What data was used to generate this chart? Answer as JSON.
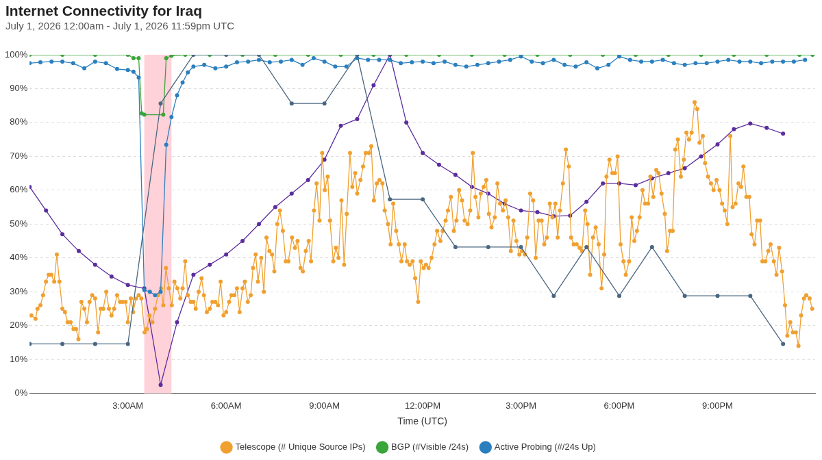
{
  "chart_data": {
    "type": "line",
    "title": "Internet Connectivity for Iraq",
    "subtitle": "July 1, 2026 12:00am - July 1, 2026 11:59pm UTC",
    "xlabel": "Time (UTC)",
    "xlim": [
      0,
      23.98
    ],
    "xticks": [
      {
        "value": 3,
        "label": "3:00AM"
      },
      {
        "value": 6,
        "label": "6:00AM"
      },
      {
        "value": 9,
        "label": "9:00AM"
      },
      {
        "value": 12,
        "label": "12:00PM"
      },
      {
        "value": 15,
        "label": "3:00PM"
      },
      {
        "value": 18,
        "label": "6:00PM"
      },
      {
        "value": 21,
        "label": "9:00PM"
      }
    ],
    "ylim": [
      0,
      100
    ],
    "yticks": [
      {
        "value": 0,
        "label": "0%"
      },
      {
        "value": 10,
        "label": "10%"
      },
      {
        "value": 20,
        "label": "20%"
      },
      {
        "value": 30,
        "label": "30%"
      },
      {
        "value": 40,
        "label": "40%"
      },
      {
        "value": 50,
        "label": "50%"
      },
      {
        "value": 60,
        "label": "60%"
      },
      {
        "value": 70,
        "label": "70%"
      },
      {
        "value": 80,
        "label": "80%"
      },
      {
        "value": 90,
        "label": "90%"
      },
      {
        "value": 100,
        "label": "100%"
      }
    ],
    "grid": "y",
    "legend": "bottom",
    "marker": "circle",
    "line_style": "solid",
    "bands": [
      {
        "axis": "x",
        "from": 3.5,
        "to": 4.33,
        "color": "#ffd1d9"
      }
    ],
    "series": [
      {
        "color": "#5b2d9e",
        "x": [
          0,
          0.5,
          1,
          1.5,
          2,
          2.5,
          3,
          3.5,
          4,
          4.5,
          5,
          5.5,
          6,
          6.5,
          7,
          7.5,
          8,
          8.5,
          9,
          9.5,
          10,
          10.5,
          11,
          11.5,
          12,
          12.5,
          13,
          13.5,
          14,
          14.5,
          15,
          15.5,
          16,
          16.5,
          17,
          17.5,
          18,
          18.5,
          19,
          19.5,
          20,
          20.5,
          21,
          21.5,
          22,
          22.5,
          23
        ],
        "values": [
          61,
          54,
          47,
          42,
          38,
          34.5,
          32,
          31,
          2.5,
          21,
          35,
          38,
          41,
          45,
          50,
          55,
          59,
          63,
          69,
          79,
          81,
          91,
          100,
          80,
          71,
          67.5,
          64.5,
          61,
          59,
          56,
          54,
          53.5,
          52.3,
          52.5,
          56.6,
          62,
          62,
          61.5,
          63.5,
          65,
          66.5,
          70,
          73.5,
          78,
          79.7,
          78.4,
          76.7
        ]
      },
      {
        "name": "Telescope (# Unique Source IPs)",
        "color": "#f0a030",
        "x": [
          0.05,
          0.18,
          0.24,
          0.33,
          0.41,
          0.5,
          0.58,
          0.66,
          0.75,
          0.83,
          0.91,
          1.0,
          1.08,
          1.16,
          1.25,
          1.34,
          1.42,
          1.49,
          1.58,
          1.67,
          1.75,
          1.83,
          1.91,
          2.0,
          2.09,
          2.17,
          2.25,
          2.34,
          2.42,
          2.5,
          2.58,
          2.67,
          2.76,
          2.84,
          2.93,
          3.0,
          3.09,
          3.16,
          3.25,
          3.33,
          3.41,
          3.51,
          3.58,
          3.66,
          3.75,
          3.83,
          3.92,
          4.01,
          4.08,
          4.16,
          4.25,
          4.34,
          4.42,
          4.51,
          4.6,
          4.67,
          4.75,
          4.83,
          4.92,
          5.0,
          5.07,
          5.16,
          5.25,
          5.32,
          5.41,
          5.5,
          5.58,
          5.67,
          5.75,
          5.83,
          5.92,
          6.0,
          6.09,
          6.16,
          6.25,
          6.33,
          6.41,
          6.5,
          6.57,
          6.66,
          6.75,
          6.82,
          6.9,
          6.97,
          7.07,
          7.15,
          7.23,
          7.32,
          7.4,
          7.47,
          7.56,
          7.64,
          7.73,
          7.82,
          7.9,
          8.01,
          8.1,
          8.18,
          8.27,
          8.34,
          8.43,
          8.52,
          8.59,
          8.68,
          8.76,
          8.85,
          8.93,
          9.01,
          9.1,
          9.17,
          9.27,
          9.35,
          9.43,
          9.52,
          9.6,
          9.68,
          9.78,
          9.85,
          9.94,
          10.0,
          10.1,
          10.18,
          10.26,
          10.36,
          10.43,
          10.51,
          10.6,
          10.68,
          10.77,
          10.84,
          10.94,
          11.02,
          11.1,
          11.19,
          11.27,
          11.35,
          11.45,
          11.52,
          11.6,
          11.69,
          11.77,
          11.86,
          11.94,
          12.03,
          12.1,
          12.18,
          12.27,
          12.36,
          12.44,
          12.54,
          12.61,
          12.7,
          12.77,
          12.86,
          12.95,
          13.03,
          13.11,
          13.2,
          13.28,
          13.37,
          13.45,
          13.53,
          13.61,
          13.7,
          13.77,
          13.86,
          13.94,
          14.02,
          14.1,
          14.2,
          14.28,
          14.36,
          14.45,
          14.53,
          14.61,
          14.69,
          14.77,
          14.86,
          14.95,
          15.03,
          15.12,
          15.19,
          15.28,
          15.37,
          15.45,
          15.54,
          15.63,
          15.71,
          15.79,
          15.88,
          15.96,
          16.05,
          16.12,
          16.19,
          16.28,
          16.37,
          16.46,
          16.53,
          16.61,
          16.7,
          16.79,
          16.86,
          16.96,
          17.03,
          17.11,
          17.2,
          17.28,
          17.37,
          17.46,
          17.54,
          17.61,
          17.7,
          17.79,
          17.87,
          17.95,
          18.04,
          18.13,
          18.2,
          18.3,
          18.38,
          18.46,
          18.54,
          18.62,
          18.71,
          18.79,
          18.88,
          18.95,
          19.04,
          19.13,
          19.2,
          19.29,
          19.39,
          19.46,
          19.55,
          19.63,
          19.71,
          19.79,
          19.88,
          19.97,
          20.05,
          20.13,
          20.21,
          20.3,
          20.38,
          20.45,
          20.55,
          20.62,
          20.71,
          20.8,
          20.88,
          20.97,
          21.06,
          21.14,
          21.22,
          21.3,
          21.39,
          21.46,
          21.55,
          21.64,
          21.72,
          21.79,
          21.88,
          21.97,
          22.04,
          22.13,
          22.21,
          22.3,
          22.37,
          22.46,
          22.55,
          22.62,
          22.72,
          22.8,
          22.88,
          22.97,
          23.06,
          23.13,
          23.22,
          23.3,
          23.39,
          23.47,
          23.55,
          23.64,
          23.71,
          23.81,
          23.89
        ],
        "values": [
          23,
          22,
          25,
          26,
          29,
          33,
          35,
          35,
          33,
          41,
          33,
          25,
          24,
          21,
          21,
          19,
          19,
          16,
          27,
          25,
          21,
          27,
          29,
          28,
          18,
          25,
          25,
          30,
          25,
          23,
          25,
          29,
          27,
          27,
          27,
          21,
          28,
          24,
          28,
          29,
          28,
          18,
          19,
          23,
          21,
          25,
          29,
          31,
          26,
          37,
          31,
          26,
          33,
          31,
          28,
          31,
          39,
          29,
          27,
          27,
          25,
          30,
          34,
          29,
          24,
          25,
          27,
          27,
          26,
          33,
          23,
          24,
          27,
          29,
          29,
          31,
          24,
          31,
          33,
          27,
          29,
          37,
          41,
          33,
          40,
          30,
          46,
          42,
          41,
          36,
          50,
          54,
          48,
          39,
          39,
          46,
          43,
          45,
          37,
          36,
          42,
          45,
          39,
          54,
          62,
          51,
          71,
          60,
          64,
          51,
          39,
          43,
          40,
          57,
          38,
          53,
          71,
          61,
          65,
          59,
          63,
          67,
          71,
          71,
          73,
          57,
          62,
          63,
          62,
          54,
          50,
          44,
          56,
          48,
          44,
          39,
          44,
          39,
          38,
          39,
          34,
          27,
          39,
          37,
          38,
          37,
          40,
          44,
          48,
          45,
          48,
          51,
          54,
          58,
          48,
          51,
          60,
          57,
          51,
          50,
          54,
          71,
          58,
          52,
          59,
          61,
          63,
          53,
          49,
          52,
          62,
          56,
          54,
          57,
          52,
          42,
          51,
          45,
          41,
          42,
          41,
          46,
          59,
          57,
          40,
          51,
          51,
          44,
          46,
          56,
          52,
          56,
          46,
          54,
          62,
          72,
          67,
          46,
          44,
          44,
          43,
          42,
          54,
          50,
          35,
          46,
          49,
          44,
          31,
          41,
          64,
          69,
          65,
          65,
          70,
          44,
          39,
          35,
          39,
          52,
          45,
          48,
          52,
          60,
          56,
          56,
          64,
          58,
          66,
          65,
          59,
          53,
          42,
          48,
          48,
          72,
          75,
          64,
          69,
          77,
          75,
          77,
          86,
          84,
          74,
          76,
          68,
          64,
          62,
          60,
          63,
          60,
          56,
          54,
          50,
          76,
          55,
          56,
          62,
          61,
          67,
          58,
          58,
          47,
          44,
          51,
          51,
          39,
          39,
          42,
          44,
          39,
          35,
          43,
          36,
          26,
          17,
          21,
          18,
          18,
          14,
          23,
          28,
          29,
          28,
          25
        ]
      },
      {
        "name": "BGP (#Visible /24s)",
        "color": "#3aa53a",
        "x": [
          0,
          1,
          2,
          3,
          3.17,
          3.33,
          3.42,
          3.5,
          4.08,
          4.17,
          4.33,
          4.75,
          5.5,
          6.5,
          7.5,
          8.5,
          9.5,
          10.5,
          11.5,
          12.5,
          13.5,
          14.5,
          15.5,
          16.5,
          17.5,
          18.5,
          19.5,
          20.5,
          21.5,
          22.5,
          23.5,
          23.9
        ],
        "values": [
          100,
          100,
          100,
          100,
          99,
          99,
          82.7,
          82.3,
          82.3,
          99,
          99.7,
          100,
          100,
          100,
          100,
          100,
          100,
          100,
          100,
          100,
          100,
          100,
          100,
          100,
          100,
          100,
          100,
          100,
          100,
          100,
          100,
          100
        ]
      },
      {
        "name": "Active Probing (#/24s Up)",
        "color": "#2a7fbf",
        "x": [
          0,
          0.33,
          0.67,
          1,
          1.33,
          1.67,
          2,
          2.33,
          2.67,
          3,
          3.17,
          3.33,
          3.5,
          3.67,
          3.83,
          4,
          4.17,
          4.33,
          4.5,
          4.67,
          4.83,
          5,
          5.33,
          5.67,
          6,
          6.33,
          6.67,
          7,
          7.33,
          7.67,
          8,
          8.33,
          8.67,
          9,
          9.33,
          9.67,
          10,
          10.33,
          10.67,
          11,
          11.33,
          11.67,
          12,
          12.33,
          12.67,
          13,
          13.33,
          13.67,
          14,
          14.33,
          14.67,
          15,
          15.33,
          15.67,
          16,
          16.33,
          16.67,
          17,
          17.33,
          17.67,
          18,
          18.33,
          18.67,
          19,
          19.33,
          19.67,
          20,
          20.33,
          20.67,
          21,
          21.33,
          21.67,
          22,
          22.33,
          22.67,
          23,
          23.33,
          23.67
        ],
        "values": [
          97.5,
          97.8,
          98,
          98,
          97.5,
          96,
          98,
          97.5,
          95.8,
          95.5,
          95,
          93.3,
          30.5,
          30,
          29,
          30,
          73.4,
          81.6,
          88,
          91.8,
          94.8,
          96.5,
          97,
          96,
          96.5,
          97.8,
          98,
          98.5,
          97.8,
          98,
          98.5,
          97,
          99,
          98,
          96.5,
          96.5,
          99,
          98.5,
          98.5,
          98.5,
          97.5,
          97.8,
          98,
          97.5,
          98,
          97,
          96.5,
          97,
          97.5,
          98,
          98.5,
          99.5,
          98,
          97.5,
          98.5,
          97,
          96.5,
          97.8,
          96,
          97,
          99.5,
          98.5,
          98,
          98,
          98.5,
          97.5,
          97,
          97.5,
          97.5,
          98,
          98.5,
          98,
          98,
          97.5,
          98,
          98,
          98,
          98.5
        ]
      },
      {
        "color": "#4a6680",
        "x": [
          0,
          1,
          2,
          3,
          4,
          5,
          6,
          7,
          8,
          9,
          10,
          11,
          12,
          13,
          14,
          15,
          16,
          17,
          18,
          19,
          20,
          21,
          22,
          23
        ],
        "values": [
          14.6,
          14.6,
          14.6,
          14.6,
          85.6,
          100,
          100,
          100,
          85.6,
          85.6,
          100,
          57.3,
          57.3,
          43.2,
          43.2,
          43.2,
          28.8,
          43.2,
          28.8,
          43.2,
          28.8,
          28.8,
          28.8,
          14.6
        ]
      }
    ]
  }
}
